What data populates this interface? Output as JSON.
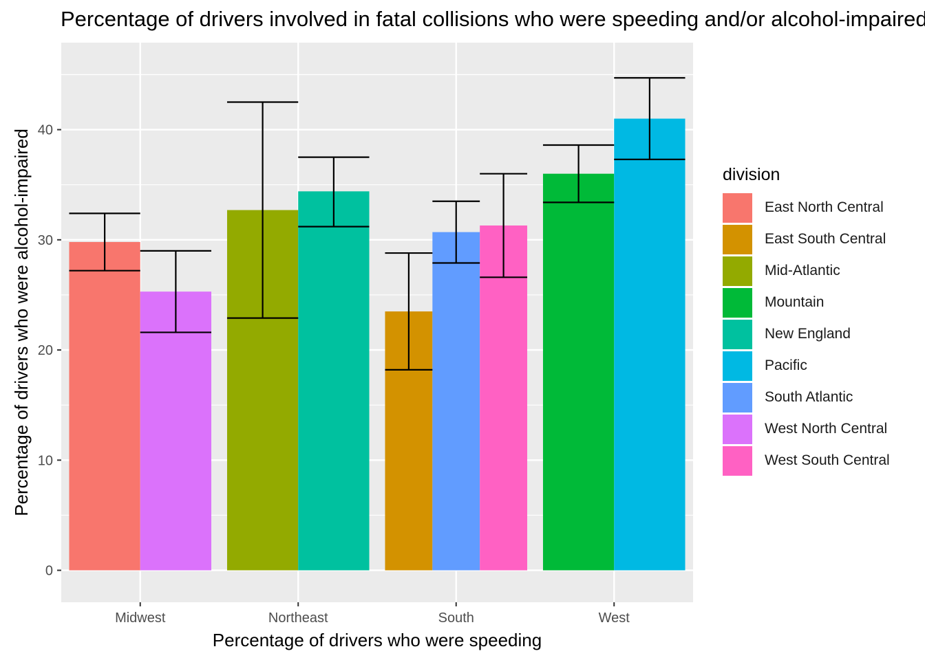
{
  "chart_data": {
    "type": "bar",
    "title": "Percentage of drivers involved in fatal collisions who were speeding and/or alcohol-impaired",
    "xlabel": "Percentage of drivers who were speeding",
    "ylabel": "Percentage of drivers who were alcohol-impaired",
    "categories": [
      "Midwest",
      "Northeast",
      "South",
      "West"
    ],
    "ylim": [
      -2.9,
      47.9
    ],
    "yticks": [
      0,
      10,
      20,
      30,
      40
    ],
    "grid": true,
    "legend_title": "division",
    "legend_position": "right",
    "series": [
      {
        "name": "East North Central",
        "color": "#F8766D",
        "category": "Midwest",
        "value": 29.8,
        "error": [
          27.2,
          32.4
        ]
      },
      {
        "name": "West North Central",
        "color": "#DB72FB",
        "category": "Midwest",
        "value": 25.3,
        "error": [
          21.6,
          29.0
        ]
      },
      {
        "name": "Mid-Atlantic",
        "color": "#93AA00",
        "category": "Northeast",
        "value": 32.7,
        "error": [
          22.9,
          42.5
        ]
      },
      {
        "name": "New England",
        "color": "#00C19F",
        "category": "Northeast",
        "value": 34.4,
        "error": [
          31.2,
          37.5
        ]
      },
      {
        "name": "East South Central",
        "color": "#D39200",
        "category": "South",
        "value": 23.5,
        "error": [
          18.2,
          28.8
        ]
      },
      {
        "name": "South Atlantic",
        "color": "#619CFF",
        "category": "South",
        "value": 30.7,
        "error": [
          27.9,
          33.5
        ]
      },
      {
        "name": "West South Central",
        "color": "#FF61C3",
        "category": "South",
        "value": 31.3,
        "error": [
          26.6,
          36.0
        ]
      },
      {
        "name": "Mountain",
        "color": "#00BA38",
        "category": "West",
        "value": 36.0,
        "error": [
          33.4,
          38.6
        ]
      },
      {
        "name": "Pacific",
        "color": "#00B9E3",
        "category": "West",
        "value": 41.0,
        "error": [
          37.3,
          44.7
        ]
      }
    ],
    "legend_order": [
      "East North Central",
      "East South Central",
      "Mid-Atlantic",
      "Mountain",
      "New England",
      "Pacific",
      "South Atlantic",
      "West North Central",
      "West South Central"
    ]
  }
}
